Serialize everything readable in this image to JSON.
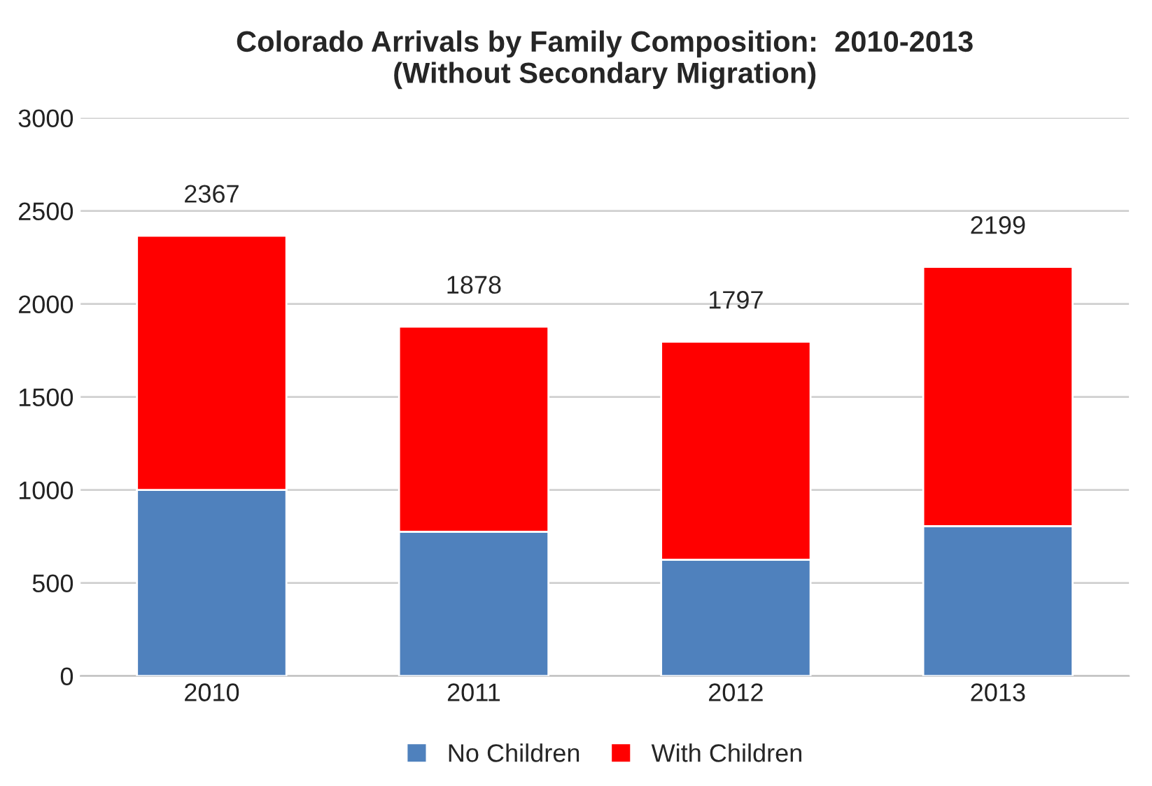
{
  "chart_data": {
    "type": "bar",
    "title": "Colorado Arrivals by Family Composition:  2010-2013\n(Without Secondary Migration)",
    "categories": [
      "2010",
      "2011",
      "2012",
      "2013"
    ],
    "stacked": true,
    "series": [
      {
        "name": "No Children",
        "color": "#4f81bd",
        "values": [
          1000,
          775,
          625,
          805
        ]
      },
      {
        "name": "With Children",
        "color": "#ff0000",
        "values": [
          1367,
          1103,
          1172,
          1394
        ]
      }
    ],
    "totals": [
      "2367",
      "1878",
      "1797",
      "2199"
    ],
    "ylim": [
      0,
      3000
    ],
    "yticks": [
      0,
      500,
      1000,
      1500,
      2000,
      2500,
      3000
    ],
    "grid": "y",
    "legend": "bottom"
  }
}
